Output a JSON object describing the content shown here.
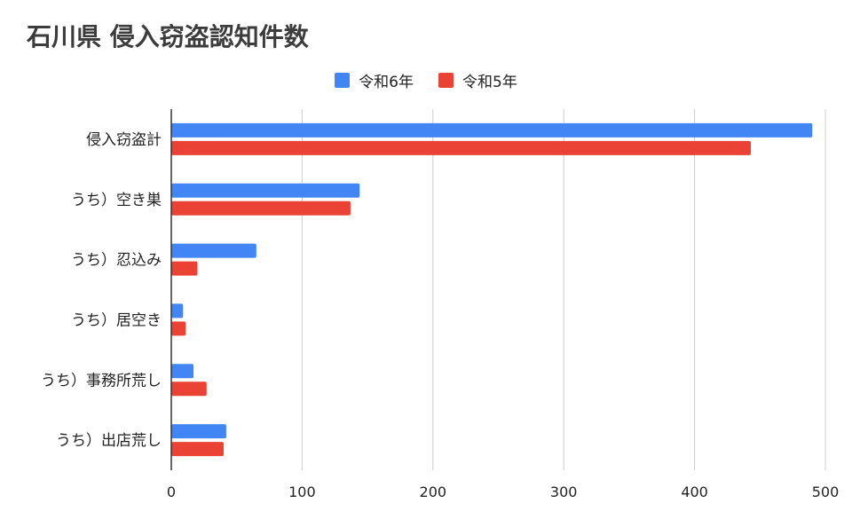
{
  "chart_data": {
    "type": "bar",
    "orientation": "horizontal",
    "title": "石川県 侵入窃盗認知件数",
    "categories": [
      "侵入窃盗計",
      "うち）空き巣",
      "うち）忍込み",
      "うち）居空き",
      "うち）事務所荒し",
      "うち）出店荒し"
    ],
    "series": [
      {
        "name": "令和6年",
        "color": "#4285f4",
        "values": [
          490,
          144,
          65,
          9,
          17,
          42
        ]
      },
      {
        "name": "令和5年",
        "color": "#ea4335",
        "values": [
          443,
          137,
          20,
          11,
          27,
          40
        ]
      }
    ],
    "xlim": [
      0,
      500
    ],
    "xticks": [
      0,
      100,
      200,
      300,
      400,
      500
    ],
    "xtick_labels": [
      "0",
      "100",
      "200",
      "300",
      "400",
      "500"
    ],
    "grid": true,
    "legend_position": "top-center"
  }
}
